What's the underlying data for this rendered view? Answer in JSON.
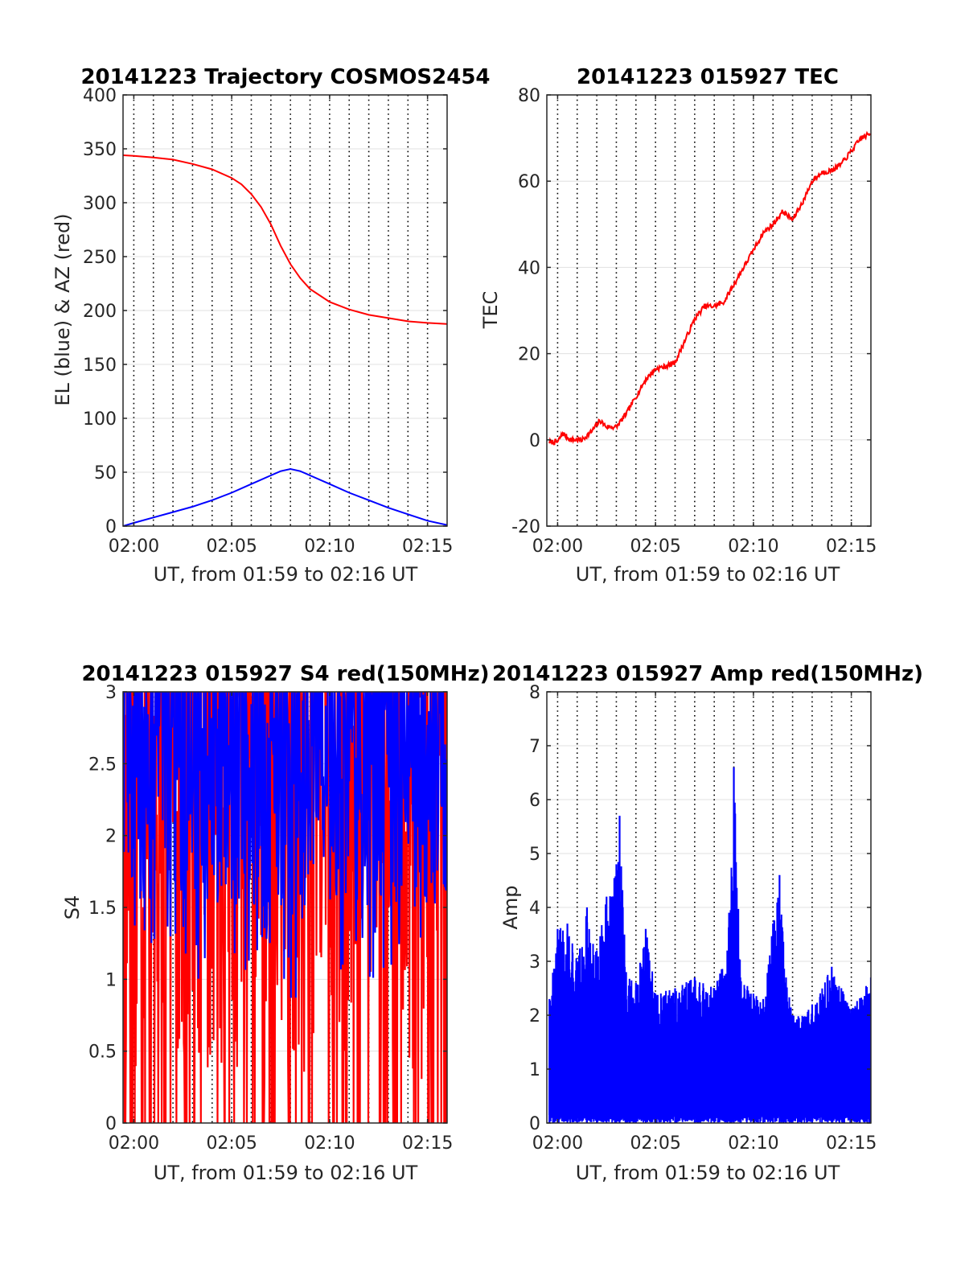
{
  "chart_data": [
    {
      "type": "line",
      "title": "20141223 Trajectory COSMOS2454",
      "xlabel": "UT, from 01:59 to 02:16 UT",
      "ylabel": "EL (blue) & AZ (red)",
      "x_range": [
        "01:59:27",
        "02:16:00"
      ],
      "x_ticks": [
        "02:00",
        "02:05",
        "02:10",
        "02:15"
      ],
      "ylim": [
        0,
        400
      ],
      "y_ticks": [
        "0",
        "50",
        "100",
        "150",
        "200",
        "250",
        "300",
        "350",
        "400"
      ],
      "grid": "vertical dotted every minute, horizontal solid at y ticks",
      "series": [
        {
          "color": "#ff0000",
          "points": [
            [
              "01:59:27",
              344
            ],
            [
              "02:00:00",
              343.5
            ],
            [
              "02:01:00",
              342
            ],
            [
              "02:02:00",
              340
            ],
            [
              "02:03:00",
              336
            ],
            [
              "02:04:00",
              331
            ],
            [
              "02:05:00",
              323
            ],
            [
              "02:05:30",
              317
            ],
            [
              "02:06:00",
              308
            ],
            [
              "02:06:30",
              296
            ],
            [
              "02:07:00",
              280
            ],
            [
              "02:07:30",
              260
            ],
            [
              "02:08:00",
              243
            ],
            [
              "02:08:30",
              230
            ],
            [
              "02:09:00",
              220
            ],
            [
              "02:10:00",
              208
            ],
            [
              "02:11:00",
              201
            ],
            [
              "02:12:00",
              196
            ],
            [
              "02:13:00",
              193
            ],
            [
              "02:14:00",
              190
            ],
            [
              "02:15:00",
              188.5
            ],
            [
              "02:16:00",
              187.5
            ]
          ]
        },
        {
          "color": "#0000ff",
          "points": [
            [
              "01:59:27",
              0
            ],
            [
              "02:00:00",
              3
            ],
            [
              "02:01:00",
              8
            ],
            [
              "02:02:00",
              13
            ],
            [
              "02:03:00",
              18
            ],
            [
              "02:04:00",
              24
            ],
            [
              "02:05:00",
              31
            ],
            [
              "02:06:00",
              39
            ],
            [
              "02:07:00",
              47
            ],
            [
              "02:07:30",
              51
            ],
            [
              "02:08:00",
              53
            ],
            [
              "02:08:30",
              51
            ],
            [
              "02:09:00",
              47
            ],
            [
              "02:10:00",
              39
            ],
            [
              "02:11:00",
              31
            ],
            [
              "02:12:00",
              24
            ],
            [
              "02:13:00",
              17
            ],
            [
              "02:14:00",
              11
            ],
            [
              "02:15:00",
              5
            ],
            [
              "02:16:00",
              1
            ]
          ]
        }
      ]
    },
    {
      "type": "line",
      "title": "20141223 015927 TEC",
      "xlabel": "UT, from 01:59 to 02:16 UT",
      "ylabel": "TEC",
      "x_range": [
        "01:59:27",
        "02:16:00"
      ],
      "x_ticks": [
        "02:00",
        "02:05",
        "02:10",
        "02:15"
      ],
      "ylim": [
        -20,
        80
      ],
      "y_ticks": [
        "-20",
        "0",
        "20",
        "40",
        "60",
        "80"
      ],
      "grid": "vertical dotted every minute, horizontal solid at y ticks",
      "series": [
        {
          "color": "#ff0000",
          "points": [
            [
              "01:59:35",
              -0.5
            ],
            [
              "02:00:00",
              -0.5
            ],
            [
              "02:00:15",
              1.5
            ],
            [
              "02:00:40",
              0
            ],
            [
              "02:01:15",
              0
            ],
            [
              "02:01:45",
              2
            ],
            [
              "02:02:10",
              4.5
            ],
            [
              "02:02:30",
              3
            ],
            [
              "02:03:00",
              3
            ],
            [
              "02:03:30",
              6
            ],
            [
              "02:04:00",
              10
            ],
            [
              "02:04:30",
              14
            ],
            [
              "02:05:00",
              16.5
            ],
            [
              "02:05:30",
              17
            ],
            [
              "02:06:00",
              18
            ],
            [
              "02:06:30",
              23
            ],
            [
              "02:07:00",
              28
            ],
            [
              "02:07:30",
              31
            ],
            [
              "02:08:00",
              31
            ],
            [
              "02:08:30",
              32
            ],
            [
              "02:09:00",
              36
            ],
            [
              "02:09:30",
              40
            ],
            [
              "02:10:00",
              44
            ],
            [
              "02:10:30",
              48
            ],
            [
              "02:11:00",
              50
            ],
            [
              "02:11:30",
              53
            ],
            [
              "02:12:00",
              51
            ],
            [
              "02:12:30",
              55
            ],
            [
              "02:13:00",
              60
            ],
            [
              "02:13:30",
              62
            ],
            [
              "02:14:00",
              62.5
            ],
            [
              "02:14:30",
              64
            ],
            [
              "02:15:00",
              67
            ],
            [
              "02:15:30",
              70
            ],
            [
              "02:16:00",
              71
            ]
          ]
        }
      ]
    },
    {
      "type": "line",
      "title": "20141223 015927 S4 red(150MHz)",
      "xlabel": "UT, from 01:59 to 02:16 UT",
      "ylabel": "S4",
      "x_range": [
        "01:59:27",
        "02:16:00"
      ],
      "x_ticks": [
        "02:00",
        "02:05",
        "02:10",
        "02:15"
      ],
      "ylim": [
        0,
        3
      ],
      "y_ticks": [
        "0",
        "0.5",
        "1",
        "1.5",
        "2",
        "2.5",
        "3"
      ],
      "grid": "vertical dotted every minute, horizontal solid at y ticks",
      "series": [
        {
          "color": "#ff0000",
          "description_values": "dense noisy signal mostly between 0 and 3, frequent drops to 0",
          "segments": [
            {
              "from": "01:59:27",
              "to": "02:16:00",
              "min": 0,
              "max": 3
            }
          ]
        },
        {
          "color": "#0000ff",
          "segments": [
            {
              "from": "01:59:27",
              "to": "02:07:30",
              "min": 1.0,
              "max": 3
            },
            {
              "from": "02:07:30",
              "to": "02:09:30",
              "min": 0.8,
              "max": 3
            },
            {
              "from": "02:09:30",
              "to": "02:16:00",
              "min": 1.0,
              "max": 3
            }
          ]
        }
      ]
    },
    {
      "type": "line",
      "title": "20141223 015927 Amp red(150MHz)",
      "xlabel": "UT, from 01:59 to 02:16 UT",
      "ylabel": "Amp",
      "x_range": [
        "01:59:27",
        "02:16:00"
      ],
      "x_ticks": [
        "02:00",
        "02:05",
        "02:10",
        "02:15"
      ],
      "ylim": [
        0,
        8
      ],
      "y_ticks": [
        "0",
        "1",
        "2",
        "3",
        "4",
        "5",
        "6",
        "7",
        "8"
      ],
      "grid": "vertical dotted every minute, horizontal solid at y ticks",
      "series": [
        {
          "color": "#0000ff",
          "envelope": [
            [
              "01:59:35",
              2.3
            ],
            [
              "02:00:00",
              3.6
            ],
            [
              "02:00:30",
              3.7
            ],
            [
              "02:01:00",
              3.0
            ],
            [
              "02:01:30",
              4.0
            ],
            [
              "02:02:00",
              3.2
            ],
            [
              "02:02:30",
              4.2
            ],
            [
              "02:03:00",
              4.8
            ],
            [
              "02:03:10",
              5.7
            ],
            [
              "02:03:30",
              2.8
            ],
            [
              "02:04:00",
              2.6
            ],
            [
              "02:04:30",
              3.6
            ],
            [
              "02:05:00",
              2.4
            ],
            [
              "02:06:00",
              2.5
            ],
            [
              "02:07:00",
              2.7
            ],
            [
              "02:08:00",
              2.5
            ],
            [
              "02:08:40",
              3.2
            ],
            [
              "02:09:00",
              6.6
            ],
            [
              "02:09:20",
              2.7
            ],
            [
              "02:10:00",
              2.4
            ],
            [
              "02:10:30",
              2.3
            ],
            [
              "02:11:00",
              3.7
            ],
            [
              "02:11:20",
              4.6
            ],
            [
              "02:11:40",
              2.7
            ],
            [
              "02:12:00",
              2.0
            ],
            [
              "02:13:00",
              2.2
            ],
            [
              "02:14:00",
              2.9
            ],
            [
              "02:15:00",
              2.1
            ],
            [
              "02:16:00",
              2.7
            ]
          ],
          "floor": 0
        }
      ]
    }
  ]
}
